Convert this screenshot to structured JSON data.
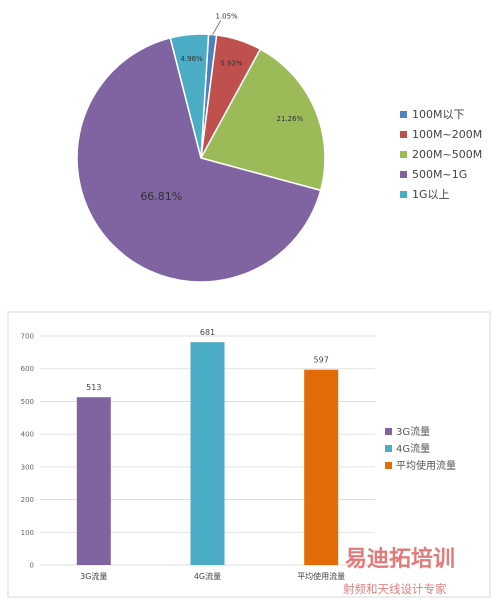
{
  "chart_data": [
    {
      "type": "pie",
      "slices": [
        {
          "label": "100M以下",
          "value": 1.05,
          "display": "1.05%",
          "color": "#4f81bd"
        },
        {
          "label": "100M~200M",
          "value": 5.92,
          "display": "5.92%",
          "color": "#c0504d"
        },
        {
          "label": "200M~500M",
          "value": 21.26,
          "display": "21.26%",
          "color": "#9bbb59"
        },
        {
          "label": "500M~1G",
          "value": 66.81,
          "display": "66.81%",
          "color": "#8064a2"
        },
        {
          "label": "1G以上",
          "value": 4.96,
          "display": "4.96%",
          "color": "#4bacc6"
        }
      ],
      "legend_position": "right"
    },
    {
      "type": "bar",
      "categories": [
        "3G流量",
        "4G流量",
        "平均使用流量"
      ],
      "values": [
        513,
        681,
        597
      ],
      "colors": [
        "#8064a2",
        "#4bacc6",
        "#e36c09"
      ],
      "ylim": [
        0,
        700
      ],
      "yticks": [
        0,
        100,
        200,
        300,
        400,
        500,
        600,
        700
      ],
      "grid": true,
      "legend_position": "right"
    }
  ],
  "watermark": {
    "title": "易迪拓培训",
    "subtitle": "射频和天线设计专家"
  }
}
